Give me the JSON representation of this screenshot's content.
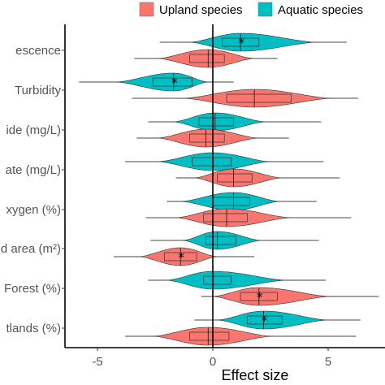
{
  "chart_data": {
    "type": "violin",
    "xlabel": "Effect size",
    "xlim": [
      -5.3,
      7.4
    ],
    "xticks": [
      -5,
      0,
      5
    ],
    "zero_line": 0,
    "legend": {
      "placement": "top",
      "entries": [
        {
          "name": "Upland species",
          "color": "#F8766D"
        },
        {
          "name": "Aquatic species",
          "color": "#00BFC4"
        }
      ]
    },
    "categories": [
      "escence",
      "Turbidity",
      "ide (mg/L)",
      "ate (mg/L)",
      "xygen (%)",
      "d area (m²)",
      "Forest (%)",
      "tlands (%)"
    ],
    "series": [
      {
        "name": "Upland species",
        "color": "#F8766D",
        "groups": [
          {
            "category": "escence",
            "min": -3.4,
            "max": 2.8,
            "q1": -1.0,
            "median": -0.2,
            "q3": 0.5,
            "violin_min": -2.4,
            "violin_max": 1.8,
            "significant": false
          },
          {
            "category": "Turbidity",
            "min": -3.5,
            "max": 6.3,
            "q1": 0.6,
            "median": 1.8,
            "q3": 3.4,
            "violin_min": -1.3,
            "violin_max": 5.2,
            "significant": false
          },
          {
            "category": "ide (mg/L)",
            "min": -3.3,
            "max": 3.3,
            "q1": -1.0,
            "median": -0.3,
            "q3": 0.5,
            "violin_min": -2.4,
            "violin_max": 2.0,
            "significant": false
          },
          {
            "category": "ate (mg/L)",
            "min": -1.6,
            "max": 5.5,
            "q1": 0.2,
            "median": 0.9,
            "q3": 1.7,
            "violin_min": -0.8,
            "violin_max": 3.0,
            "significant": false
          },
          {
            "category": "xygen (%)",
            "min": -2.9,
            "max": 6.0,
            "q1": -0.4,
            "median": 0.6,
            "q3": 1.5,
            "violin_min": -1.6,
            "violin_max": 3.4,
            "significant": false
          },
          {
            "category": "d area (m²)",
            "min": -4.3,
            "max": 1.8,
            "q1": -2.1,
            "median": -1.4,
            "q3": -0.7,
            "violin_min": -3.2,
            "violin_max": 0.2,
            "significant": true
          },
          {
            "category": "Forest (%)",
            "min": -0.5,
            "max": 7.2,
            "q1": 1.2,
            "median": 2.0,
            "q3": 2.8,
            "violin_min": 0.0,
            "violin_max": 5.1,
            "significant": true
          },
          {
            "category": "tlands (%)",
            "min": -3.8,
            "max": 6.2,
            "q1": -1.0,
            "median": -0.2,
            "q3": 0.7,
            "violin_min": -2.6,
            "violin_max": 2.6,
            "significant": false
          }
        ]
      },
      {
        "name": "Aquatic species",
        "color": "#00BFC4",
        "groups": [
          {
            "category": "escence",
            "min": -2.3,
            "max": 5.8,
            "q1": 0.4,
            "median": 1.2,
            "q3": 2.0,
            "violin_min": -1.0,
            "violin_max": 4.5,
            "significant": true
          },
          {
            "category": "Turbidity",
            "min": -5.8,
            "max": 0.9,
            "q1": -2.6,
            "median": -1.7,
            "q3": -0.9,
            "violin_min": -4.2,
            "violin_max": -0.2,
            "significant": true
          },
          {
            "category": "ide (mg/L)",
            "min": -2.8,
            "max": 4.7,
            "q1": -0.6,
            "median": 0.1,
            "q3": 0.9,
            "violin_min": -1.7,
            "violin_max": 2.3,
            "significant": false
          },
          {
            "category": "ate (mg/L)",
            "min": -3.8,
            "max": 4.8,
            "q1": -0.9,
            "median": 0.0,
            "q3": 0.8,
            "violin_min": -2.4,
            "violin_max": 2.5,
            "significant": false
          },
          {
            "category": "xygen (%)",
            "min": -2.0,
            "max": 4.5,
            "q1": 0.0,
            "median": 0.9,
            "q3": 1.6,
            "violin_min": -1.4,
            "violin_max": 2.9,
            "significant": false
          },
          {
            "category": "d area (m²)",
            "min": -2.7,
            "max": 4.6,
            "q1": -0.3,
            "median": 0.2,
            "q3": 1.0,
            "violin_min": -1.3,
            "violin_max": 2.1,
            "significant": false
          },
          {
            "category": "Forest (%)",
            "min": -2.8,
            "max": 4.9,
            "q1": -0.4,
            "median": 0.0,
            "q3": 0.8,
            "violin_min": -2.0,
            "violin_max": 3.2,
            "significant": false
          },
          {
            "category": "tlands (%)",
            "min": -0.8,
            "max": 6.4,
            "q1": 1.5,
            "median": 2.2,
            "q3": 3.0,
            "violin_min": 0.2,
            "violin_max": 5.0,
            "significant": true
          }
        ]
      }
    ]
  }
}
